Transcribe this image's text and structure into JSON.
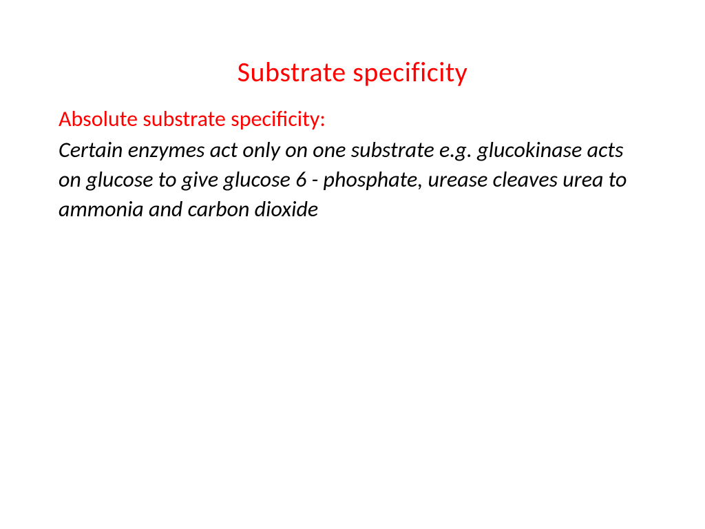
{
  "slide": {
    "title": "Substrate specificity",
    "subheading": "Absolute substrate specificity:",
    "body": " Certain enzymes act only on one substrate e.g. glucokinase acts on glucose to give glucose 6 - phosphate, urease cleaves urea to ammonia and carbon dioxide"
  },
  "colors": {
    "title": "#ff0000",
    "subheading": "#ff0000",
    "body": "#000000",
    "background": "#ffffff"
  },
  "typography": {
    "title_fontsize": 40,
    "subheading_fontsize": 32,
    "body_fontsize": 32,
    "font_family": "Calibri",
    "body_style": "italic"
  }
}
